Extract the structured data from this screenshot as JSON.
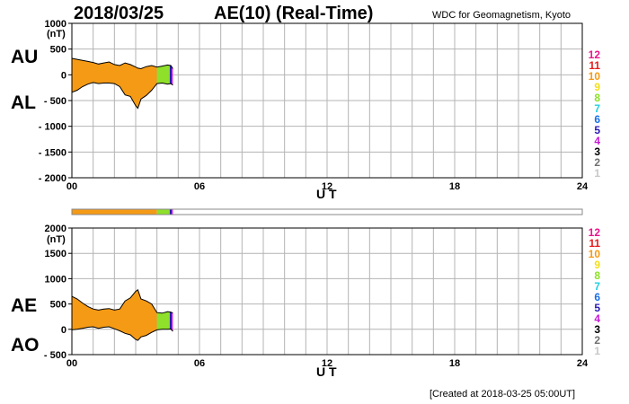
{
  "header": {
    "date": "2018/03/25",
    "title": "AE(10) (Real-Time)",
    "source": "WDC for Geomagnetism, Kyoto"
  },
  "footer": {
    "created": "[Created at 2018-03-25 05:00UT]"
  },
  "legend": {
    "stations": [
      {
        "label": "12",
        "color": "#e8168c"
      },
      {
        "label": "11",
        "color": "#e81c1c"
      },
      {
        "label": "10",
        "color": "#f59a14"
      },
      {
        "label": "9",
        "color": "#f2df1a"
      },
      {
        "label": "8",
        "color": "#8ee02a"
      },
      {
        "label": "7",
        "color": "#22cfe0"
      },
      {
        "label": "6",
        "color": "#1a6fe6"
      },
      {
        "label": "5",
        "color": "#2b1ab3"
      },
      {
        "label": "4",
        "color": "#c81ad6"
      },
      {
        "label": "3",
        "color": "#000000"
      },
      {
        "label": "2",
        "color": "#707070"
      },
      {
        "label": "1",
        "color": "#c8c8c8"
      }
    ]
  },
  "chart_data": [
    {
      "type": "area",
      "name": "AU/AL",
      "series_labels": [
        "AU",
        "AL"
      ],
      "unit": "(nT)",
      "xlabel": "U T",
      "xlim": [
        0,
        24
      ],
      "xticks": [
        "00",
        "06",
        "12",
        "18",
        "24"
      ],
      "ylim": [
        -2000,
        1000
      ],
      "yticks": [
        "1000",
        "500",
        "0",
        "- 500",
        "- 1000",
        "- 1500",
        "- 2000"
      ],
      "grid": true,
      "x": [
        0,
        0.25,
        0.5,
        0.75,
        1,
        1.25,
        1.5,
        1.75,
        2,
        2.25,
        2.5,
        2.75,
        3,
        3.1,
        3.25,
        3.5,
        3.75,
        4,
        4.25,
        4.5,
        4.65,
        4.75
      ],
      "upper": [
        320,
        300,
        280,
        260,
        240,
        210,
        230,
        250,
        200,
        180,
        230,
        200,
        150,
        130,
        120,
        160,
        180,
        150,
        170,
        190,
        180,
        120
      ],
      "lower": [
        -340,
        -300,
        -230,
        -180,
        -150,
        -170,
        -160,
        -160,
        -170,
        -230,
        -390,
        -420,
        -600,
        -650,
        -470,
        -400,
        -300,
        -170,
        -160,
        -180,
        -170,
        -200
      ],
      "segments": [
        {
          "x0": 0,
          "x1": 4.0,
          "station": "10"
        },
        {
          "x0": 4.0,
          "x1": 4.6,
          "station": "8"
        },
        {
          "x0": 4.6,
          "x1": 4.7,
          "station": "5"
        },
        {
          "x0": 4.7,
          "x1": 4.75,
          "station": "4"
        }
      ]
    },
    {
      "type": "area",
      "name": "AE/AO",
      "series_labels": [
        "AE",
        "AO"
      ],
      "unit": "(nT)",
      "xlabel": "U T",
      "xlim": [
        0,
        24
      ],
      "xticks": [
        "00",
        "06",
        "12",
        "18",
        "24"
      ],
      "ylim": [
        -500,
        2000
      ],
      "yticks": [
        "2000",
        "1500",
        "1000",
        "500",
        "0",
        "- 500"
      ],
      "grid": true,
      "x": [
        0,
        0.25,
        0.5,
        0.75,
        1,
        1.25,
        1.5,
        1.75,
        2,
        2.25,
        2.5,
        2.75,
        3,
        3.1,
        3.25,
        3.5,
        3.75,
        4,
        4.25,
        4.5,
        4.65,
        4.75
      ],
      "upper": [
        650,
        600,
        520,
        450,
        400,
        380,
        400,
        410,
        380,
        400,
        560,
        620,
        750,
        780,
        600,
        560,
        500,
        330,
        320,
        350,
        340,
        320
      ],
      "lower": [
        -10,
        0,
        20,
        40,
        50,
        20,
        40,
        50,
        10,
        -30,
        -80,
        -110,
        -200,
        -220,
        -150,
        -120,
        -60,
        -10,
        0,
        0,
        5,
        -40
      ],
      "segments": [
        {
          "x0": 0,
          "x1": 4.0,
          "station": "10"
        },
        {
          "x0": 4.0,
          "x1": 4.6,
          "station": "8"
        },
        {
          "x0": 4.6,
          "x1": 4.7,
          "station": "5"
        },
        {
          "x0": 4.7,
          "x1": 4.75,
          "station": "4"
        }
      ]
    }
  ],
  "station_bar": {
    "xlim": [
      0,
      24
    ],
    "segments": [
      {
        "x0": 0,
        "x1": 4.0,
        "station": "10"
      },
      {
        "x0": 4.0,
        "x1": 4.6,
        "station": "8"
      },
      {
        "x0": 4.6,
        "x1": 4.7,
        "station": "5"
      },
      {
        "x0": 4.7,
        "x1": 4.75,
        "station": "4"
      }
    ]
  }
}
